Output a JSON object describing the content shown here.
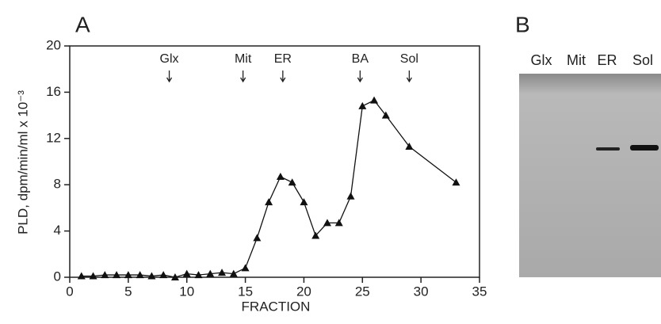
{
  "chart_data": {
    "type": "line",
    "panel_label": "A",
    "xlabel": "FRACTION",
    "ylabel": "PLD, dpm/min/ml x 10⁻³",
    "x": [
      1,
      2,
      3,
      4,
      5,
      6,
      7,
      8,
      9,
      10,
      11,
      12,
      13,
      14,
      15,
      16,
      17,
      18,
      19,
      20,
      21,
      22,
      23,
      24,
      25,
      26,
      27,
      29,
      33
    ],
    "values": [
      0.1,
      0.1,
      0.2,
      0.2,
      0.2,
      0.2,
      0.1,
      0.2,
      0.0,
      0.3,
      0.2,
      0.3,
      0.4,
      0.3,
      0.8,
      3.4,
      6.5,
      8.7,
      8.2,
      6.5,
      3.6,
      4.7,
      4.7,
      7.0,
      14.8,
      15.3,
      14.0,
      11.3,
      8.2
    ],
    "color": "#111111",
    "xlim": [
      0,
      35
    ],
    "xticks": [
      0,
      5,
      10,
      15,
      20,
      25,
      30,
      35
    ],
    "ylim": [
      0,
      20
    ],
    "yticks": [
      0,
      4,
      8,
      12,
      16,
      20
    ],
    "annotations": [
      {
        "text": "Glx",
        "x": 8.5
      },
      {
        "text": "Mit",
        "x": 14.8
      },
      {
        "text": "ER",
        "x": 18.2
      },
      {
        "text": "BA",
        "x": 24.8
      },
      {
        "text": "Sol",
        "x": 29
      }
    ]
  },
  "panel_b": {
    "label": "B",
    "lanes": [
      "Glx",
      "Mit",
      "ER",
      "Sol"
    ]
  }
}
